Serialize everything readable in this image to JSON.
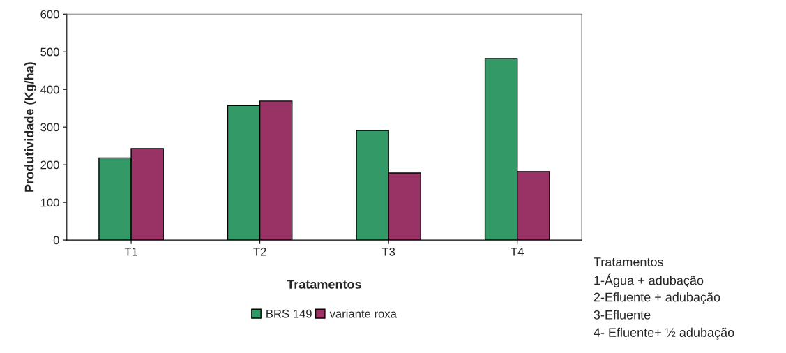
{
  "chart_data": {
    "type": "bar",
    "xlabel": "Tratamentos",
    "ylabel": "Produtividade (Kg/ha)",
    "categories": [
      "T1",
      "T2",
      "T3",
      "T4"
    ],
    "series": [
      {
        "name": "BRS 149",
        "color": "#339966",
        "values": [
          218,
          357,
          291,
          482
        ]
      },
      {
        "name": "variante roxa",
        "color": "#993366",
        "values": [
          243,
          369,
          178,
          182
        ]
      }
    ],
    "ylim": [
      0,
      600
    ],
    "yticks": [
      0,
      100,
      200,
      300,
      400,
      500,
      600
    ],
    "grid": false,
    "legend": "bottom",
    "annotations": [
      "Tratamentos",
      "1-Água + adubação",
      "2-Efluente + adubação",
      "3-Efluente",
      "4- Efluente+ ½ adubação"
    ]
  }
}
